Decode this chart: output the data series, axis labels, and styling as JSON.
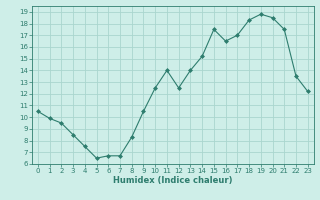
{
  "x": [
    0,
    1,
    2,
    3,
    4,
    5,
    6,
    7,
    8,
    9,
    10,
    11,
    12,
    13,
    14,
    15,
    16,
    17,
    18,
    19,
    20,
    21,
    22,
    23
  ],
  "y": [
    10.5,
    9.9,
    9.5,
    8.5,
    7.5,
    6.5,
    6.7,
    6.7,
    8.3,
    10.5,
    12.5,
    14.0,
    12.5,
    14.0,
    15.2,
    17.5,
    16.5,
    17.0,
    18.3,
    18.8,
    18.5,
    17.5,
    13.5,
    12.2
  ],
  "line_color": "#2e7d6e",
  "marker": "D",
  "marker_size": 2,
  "bg_color": "#ceeee8",
  "grid_color": "#aad6ce",
  "xlabel": "Humidex (Indice chaleur)",
  "xlim": [
    -0.5,
    23.5
  ],
  "ylim": [
    6,
    19.5
  ],
  "yticks": [
    6,
    7,
    8,
    9,
    10,
    11,
    12,
    13,
    14,
    15,
    16,
    17,
    18,
    19
  ],
  "xticks": [
    0,
    1,
    2,
    3,
    4,
    5,
    6,
    7,
    8,
    9,
    10,
    11,
    12,
    13,
    14,
    15,
    16,
    17,
    18,
    19,
    20,
    21,
    22,
    23
  ],
  "tick_color": "#2e7d6e",
  "label_color": "#2e7d6e",
  "xlabel_fontsize": 6.0,
  "tick_fontsize": 5.0
}
